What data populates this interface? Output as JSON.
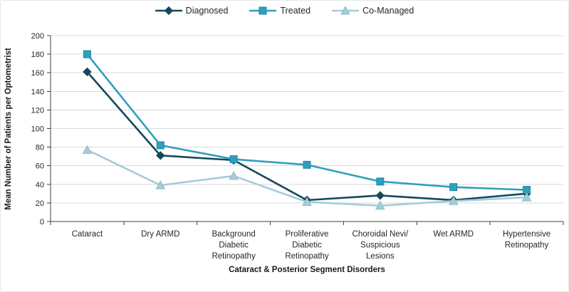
{
  "theme": {
    "background": "#FFFFFF",
    "border_color": "#E7E7E7",
    "axis_color": "#404040",
    "gridline_color": "#D9D9D9",
    "text_color": "#262626"
  },
  "chart_data": {
    "type": "line",
    "xlabel": "Cataract & Posterior Segment Disorders",
    "ylabel": "Mean Number of Patients per Optometrist",
    "ylim": [
      0,
      200
    ],
    "ytick_step": 20,
    "yticks": [
      0,
      20,
      40,
      60,
      80,
      100,
      120,
      140,
      160,
      180,
      200
    ],
    "grid": true,
    "legend_position": "top-center",
    "categories": [
      "Cataract",
      "Dry ARMD",
      "Background Diabetic Retinopathy",
      "Proliferative Diabetic Retinopathy",
      "Choroidal Nevi/ Suspicious Lesions",
      "Wet ARMD",
      "Hypertensive Retinopathy"
    ],
    "category_lines": [
      [
        "Cataract"
      ],
      [
        "Dry ARMD"
      ],
      [
        "Background",
        "Diabetic",
        "Retinopathy"
      ],
      [
        "Proliferative",
        "Diabetic",
        "Retinopathy"
      ],
      [
        "Choroidal Nevi/",
        "Suspicious",
        "Lesions"
      ],
      [
        "Wet ARMD"
      ],
      [
        "Hypertensive",
        "Retinopathy"
      ]
    ],
    "series": [
      {
        "name": "Diagnosed",
        "marker": "diamond",
        "color": "#16485C",
        "marker_stroke": "#16485C",
        "values": [
          161,
          71,
          66,
          23,
          28,
          23,
          30
        ]
      },
      {
        "name": "Treated",
        "marker": "square",
        "color": "#2F9FBE",
        "marker_stroke": "#1E87A4",
        "values": [
          180,
          82,
          67,
          61,
          43,
          37,
          34
        ]
      },
      {
        "name": "Co-Managed",
        "marker": "triangle",
        "color": "#A5CBD9",
        "marker_stroke": "#8FBCCC",
        "values": [
          77,
          39,
          49,
          21,
          17,
          22,
          26
        ]
      }
    ]
  }
}
